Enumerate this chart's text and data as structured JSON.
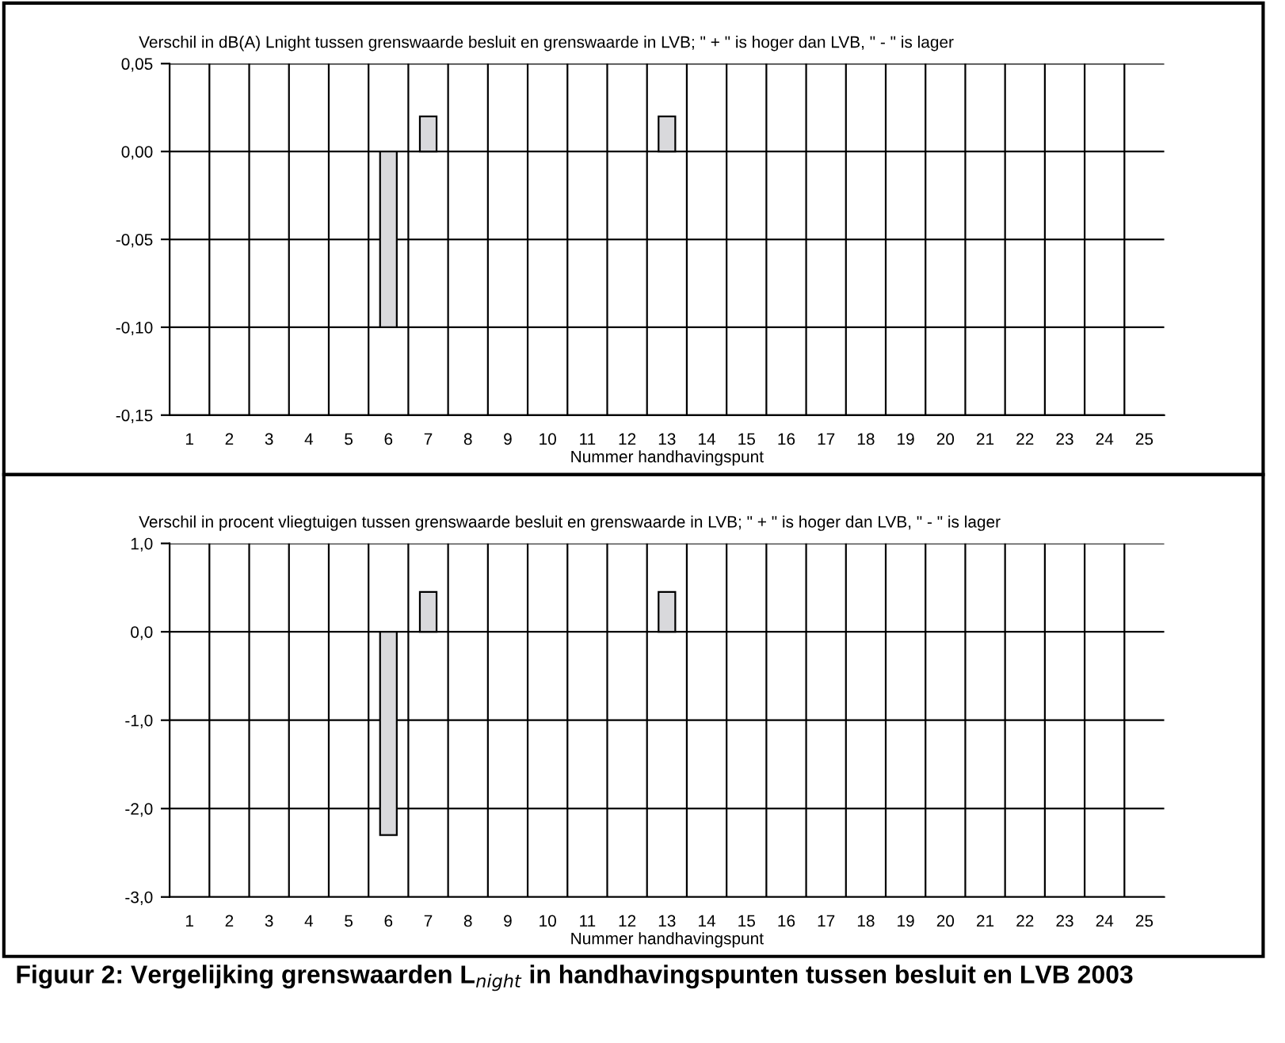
{
  "chart_data": [
    {
      "type": "bar",
      "title": "Verschil in dB(A) Lnight tussen grenswaarde besluit en grenswaarde in LVB; \" + \" is hoger dan LVB, \" - \" is lager",
      "xlabel": "Nummer handhavingspunt",
      "categories": [
        "1",
        "2",
        "3",
        "4",
        "5",
        "6",
        "7",
        "8",
        "9",
        "10",
        "11",
        "12",
        "13",
        "14",
        "15",
        "16",
        "17",
        "18",
        "19",
        "20",
        "21",
        "22",
        "23",
        "24",
        "25"
      ],
      "values": [
        null,
        null,
        null,
        null,
        null,
        -0.1,
        0.02,
        null,
        null,
        null,
        null,
        null,
        0.02,
        null,
        null,
        null,
        null,
        null,
        null,
        null,
        null,
        null,
        null,
        null,
        null
      ],
      "color": "#d9d9dc",
      "ylim": [
        -0.15,
        0.05
      ],
      "yticks": [
        {
          "value": -0.15,
          "label": "-0,15"
        },
        {
          "value": -0.1,
          "label": "-0,10"
        },
        {
          "value": -0.05,
          "label": "-0,05"
        },
        {
          "value": 0,
          "label": "0,00"
        },
        {
          "value": 0.05,
          "label": "0,05"
        }
      ],
      "grid": true
    },
    {
      "type": "bar",
      "title": "Verschil in procent vliegtuigen tussen grenswaarde besluit en grenswaarde in LVB; \" + \" is hoger dan LVB, \" - \" is lager",
      "xlabel": "Nummer handhavingspunt",
      "categories": [
        "1",
        "2",
        "3",
        "4",
        "5",
        "6",
        "7",
        "8",
        "9",
        "10",
        "11",
        "12",
        "13",
        "14",
        "15",
        "16",
        "17",
        "18",
        "19",
        "20",
        "21",
        "22",
        "23",
        "24",
        "25"
      ],
      "values": [
        null,
        null,
        null,
        null,
        null,
        -2.3,
        0.45,
        null,
        null,
        null,
        null,
        null,
        0.45,
        null,
        null,
        null,
        null,
        null,
        null,
        null,
        null,
        null,
        null,
        null,
        null
      ],
      "color": "#d9d9dc",
      "ylim": [
        -3.0,
        1.0
      ],
      "yticks": [
        {
          "value": -3,
          "label": "-3,0"
        },
        {
          "value": -2,
          "label": "-2,0"
        },
        {
          "value": -1,
          "label": "-1,0"
        },
        {
          "value": 0,
          "label": "0,0"
        },
        {
          "value": 1,
          "label": "1,0"
        }
      ],
      "grid": true,
      "annotations": [
        "Figuur 2: Vergelijking grenswaarden L$_{night}$ in handhavingspunten tussen besluit en LVB 2003"
      ]
    }
  ]
}
